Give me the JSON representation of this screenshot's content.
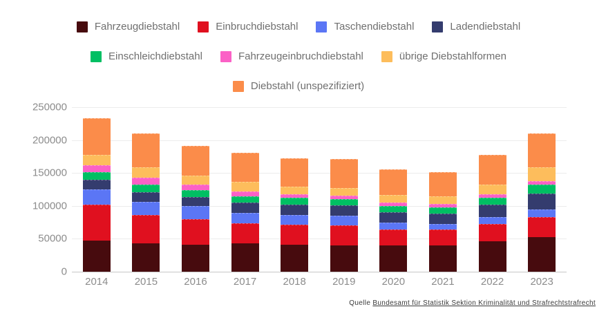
{
  "chart_data": {
    "type": "bar",
    "stacked": true,
    "title": "",
    "xlabel": "",
    "ylabel": "",
    "ylim": [
      0,
      250000
    ],
    "yticks": [
      0,
      50000,
      100000,
      150000,
      200000,
      250000
    ],
    "grid": "horizontal",
    "legend_position": "top",
    "categories": [
      "2014",
      "2015",
      "2016",
      "2017",
      "2018",
      "2019",
      "2020",
      "2021",
      "2022",
      "2023"
    ],
    "series": [
      {
        "name": "Fahrzeugdiebstahl",
        "color": "#470b0e",
        "values": [
          47000,
          43500,
          41500,
          43000,
          41500,
          39500,
          39500,
          39500,
          46000,
          52500
        ]
      },
      {
        "name": "Einbruchdiebstahl",
        "color": "#e0101f",
        "values": [
          55000,
          43000,
          38000,
          31000,
          30500,
          30500,
          25000,
          24500,
          26000,
          30000
        ]
      },
      {
        "name": "Taschendiebstahl",
        "color": "#5b76f5",
        "values": [
          23000,
          20000,
          20000,
          15500,
          14500,
          15000,
          10000,
          9000,
          11000,
          12000
        ]
      },
      {
        "name": "Ladendiebstahl",
        "color": "#343c6e",
        "values": [
          15000,
          14500,
          14000,
          16000,
          15500,
          16000,
          16000,
          15500,
          18500,
          24000
        ]
      },
      {
        "name": "Einschleichdiebstahl",
        "color": "#00bf63",
        "values": [
          11500,
          11000,
          10500,
          9500,
          10000,
          9500,
          9500,
          9000,
          11000,
          13500
        ]
      },
      {
        "name": "Fahrzeugeinbruchdiebstahl",
        "color": "#fb61c6",
        "values": [
          10500,
          10500,
          8500,
          7500,
          5500,
          5500,
          5500,
          5500,
          5500,
          6000
        ]
      },
      {
        "name": "übrige Diebstahlformen",
        "color": "#fdbd5c",
        "values": [
          16000,
          16000,
          14000,
          14000,
          12000,
          11000,
          11500,
          12000,
          14500,
          21000
        ]
      },
      {
        "name": "Diebstahl (unspezifiziert)",
        "color": "#fb8c4a",
        "values": [
          55500,
          51500,
          45000,
          44000,
          43000,
          44500,
          38500,
          36000,
          44500,
          51000
        ]
      }
    ]
  },
  "source": {
    "prefix": "Quelle ",
    "link_text": "Bundesamt für Statistik Sektion Kriminalität und Strafrechtstrafrecht"
  }
}
